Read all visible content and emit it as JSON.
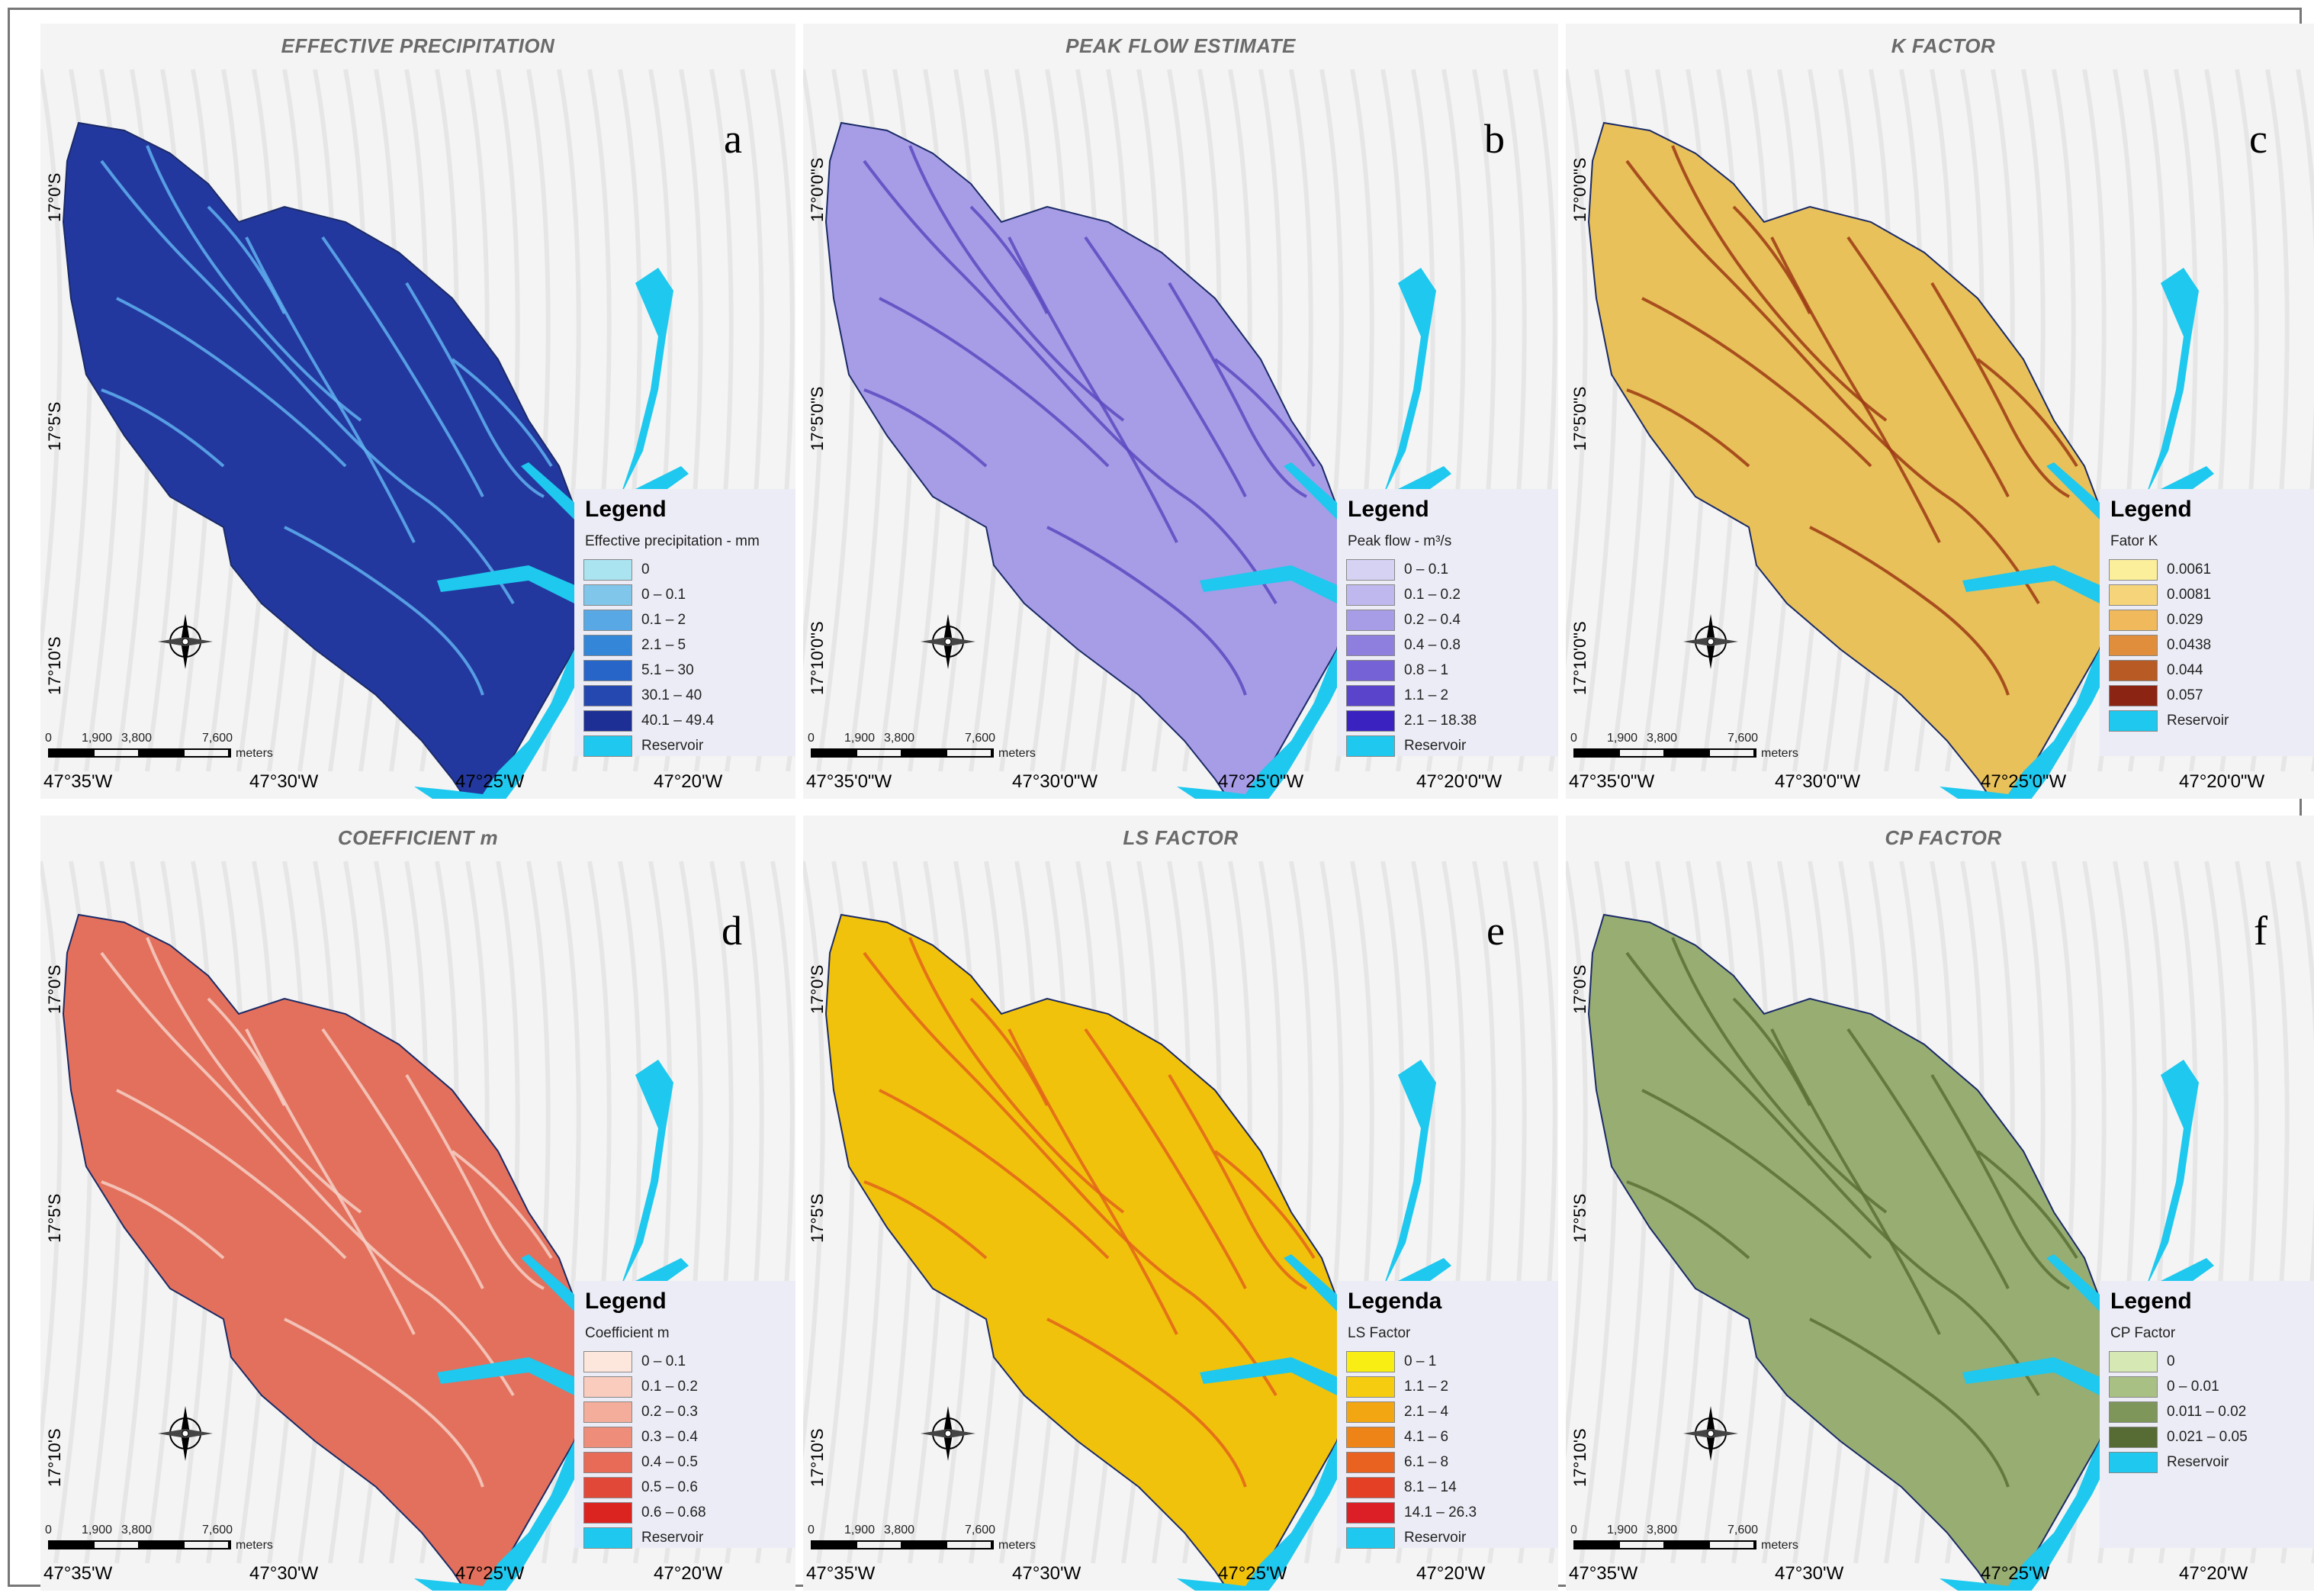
{
  "colors": {
    "reservoir": "#1ec8ee",
    "outline": "#1a2a66"
  },
  "panels": [
    {
      "title": "EFFECTIVE PRECIPITATION",
      "letter": "a",
      "fill": "#23389e",
      "streams": "#5fb0f0",
      "y_labels": [
        "17°0'S",
        "17°5'S",
        "17°10'S"
      ],
      "x_labels": [
        "47°35'W",
        "47°30'W",
        "47°25'W",
        "47°20'W"
      ],
      "legend": {
        "title": "Legend",
        "subtitle": "Effective precipitation - mm",
        "items": [
          {
            "label": "0",
            "color": "#a9e4f0"
          },
          {
            "label": "0 – 0.1",
            "color": "#7fc6ea"
          },
          {
            "label": "0.1 – 2",
            "color": "#57a8e4"
          },
          {
            "label": "2.1 – 5",
            "color": "#3486d8"
          },
          {
            "label": "5.1 – 30",
            "color": "#2766c8"
          },
          {
            "label": "30.1 – 40",
            "color": "#2448b0"
          },
          {
            "label": "40.1 – 49.4",
            "color": "#1d2e94"
          },
          {
            "label": "Reservoir",
            "color": "#1ec8ee"
          }
        ]
      },
      "scale": [
        "0",
        "1,900",
        "3,800",
        "7,600"
      ],
      "scale_units": "meters"
    },
    {
      "title": "PEAK FLOW ESTIMATE",
      "letter": "b",
      "fill": "#a79ce6",
      "streams": "#5b4ac0",
      "y_labels": [
        "17°0'0\"S",
        "17°5'0\"S",
        "17°10'0\"S"
      ],
      "x_labels": [
        "47°35'0\"W",
        "47°30'0\"W",
        "47°25'0\"W",
        "47°20'0\"W"
      ],
      "legend": {
        "title": "Legend",
        "subtitle": "Peak flow - m³/s",
        "items": [
          {
            "label": "0 – 0.1",
            "color": "#d6d2f4"
          },
          {
            "label": "0.1 – 0.2",
            "color": "#bfb8ee"
          },
          {
            "label": "0.2 – 0.4",
            "color": "#a79ce6"
          },
          {
            "label": "0.4 – 0.8",
            "color": "#8e7ede"
          },
          {
            "label": "0.8 – 1",
            "color": "#7562d6"
          },
          {
            "label": "1.1 – 2",
            "color": "#5a44cc"
          },
          {
            "label": "2.1 – 18.38",
            "color": "#3a22c0"
          },
          {
            "label": "Reservoir",
            "color": "#1ec8ee"
          }
        ]
      },
      "scale": [
        "0",
        "1,900",
        "3,800",
        "7,600"
      ],
      "scale_units": "meters"
    },
    {
      "title": "K FACTOR",
      "letter": "c",
      "fill": "#e8c15a",
      "streams": "#9c3a14",
      "y_labels": [
        "17°0'0\"S",
        "17°5'0\"S",
        "17°10'0\"S"
      ],
      "x_labels": [
        "47°35'0\"W",
        "47°30'0\"W",
        "47°25'0\"W",
        "47°20'0\"W"
      ],
      "legend": {
        "title": "Legend",
        "subtitle": "Fator K",
        "items": [
          {
            "label": "0.0061",
            "color": "#fbef9c"
          },
          {
            "label": "0.0081",
            "color": "#f6d57a"
          },
          {
            "label": "0.029",
            "color": "#f0b95c"
          },
          {
            "label": "0.0438",
            "color": "#e08e3c"
          },
          {
            "label": "0.044",
            "color": "#b85a24"
          },
          {
            "label": "0.057",
            "color": "#8c2414"
          },
          {
            "label": "Reservoir",
            "color": "#1ec8ee"
          }
        ]
      },
      "scale": [
        "0",
        "1,900",
        "3,800",
        "7,600"
      ],
      "scale_units": "meters"
    },
    {
      "title": "COEFFICIENT m",
      "letter": "d",
      "fill": "#e2705c",
      "streams": "#f6cfc4",
      "y_labels": [
        "17°0'S",
        "17°5'S",
        "17°10'S"
      ],
      "x_labels": [
        "47°35'W",
        "47°30'W",
        "47°25'W",
        "47°20'W"
      ],
      "legend": {
        "title": "Legend",
        "subtitle": "Coefficient m",
        "items": [
          {
            "label": "0 – 0.1",
            "color": "#fde6dc"
          },
          {
            "label": "0.1 – 0.2",
            "color": "#f9ccbd"
          },
          {
            "label": "0.2 – 0.3",
            "color": "#f4ad9b"
          },
          {
            "label": "0.3 – 0.4",
            "color": "#ee8d7a"
          },
          {
            "label": "0.4 – 0.5",
            "color": "#e86b58"
          },
          {
            "label": "0.5 – 0.6",
            "color": "#e24838"
          },
          {
            "label": "0.6 – 0.68",
            "color": "#db2420"
          },
          {
            "label": "Reservoir",
            "color": "#1ec8ee"
          }
        ]
      },
      "scale": [
        "0",
        "1,900",
        "3,800",
        "7,600"
      ],
      "scale_units": "meters"
    },
    {
      "title": "LS FACTOR",
      "letter": "e",
      "fill": "#f1c20c",
      "streams": "#e2641a",
      "y_labels": [
        "17°0'S",
        "17°5'S",
        "17°10'S"
      ],
      "x_labels": [
        "47°35'W",
        "47°30'W",
        "47°25'W",
        "47°20'W"
      ],
      "legend": {
        "title": "Legenda",
        "subtitle": "LS Factor",
        "items": [
          {
            "label": "0 – 1",
            "color": "#f8ee14"
          },
          {
            "label": "1.1 – 2",
            "color": "#f6cc10"
          },
          {
            "label": "2.1 – 4",
            "color": "#f2a612"
          },
          {
            "label": "4.1 – 6",
            "color": "#ee8418"
          },
          {
            "label": "6.1 – 8",
            "color": "#ea6220"
          },
          {
            "label": "8.1 – 14",
            "color": "#e44026"
          },
          {
            "label": "14.1 – 26.3",
            "color": "#dc1e26"
          },
          {
            "label": "Reservoir",
            "color": "#1ec8ee"
          }
        ]
      },
      "scale": [
        "0",
        "1,900",
        "3,800",
        "7,600"
      ],
      "scale_units": "meters"
    },
    {
      "title": "CP FACTOR",
      "letter": "f",
      "fill": "#98ad72",
      "streams": "#5a7034",
      "y_labels": [
        "17°0'S",
        "17°5'S",
        "17°10'S"
      ],
      "x_labels": [
        "47°35'W",
        "47°30'W",
        "47°25'W",
        "47°20'W"
      ],
      "legend": {
        "title": "Legend",
        "subtitle": "CP Factor",
        "items": [
          {
            "label": "0",
            "color": "#d6e8b4"
          },
          {
            "label": "0 – 0.01",
            "color": "#a9c084"
          },
          {
            "label": "0.011 – 0.02",
            "color": "#7e965a"
          },
          {
            "label": "0.021 – 0.05",
            "color": "#566c34"
          },
          {
            "label": "Reservoir",
            "color": "#1ec8ee"
          }
        ]
      },
      "scale": [
        "0",
        "1,900",
        "3,800",
        "7,600"
      ],
      "scale_units": "meters"
    }
  ]
}
